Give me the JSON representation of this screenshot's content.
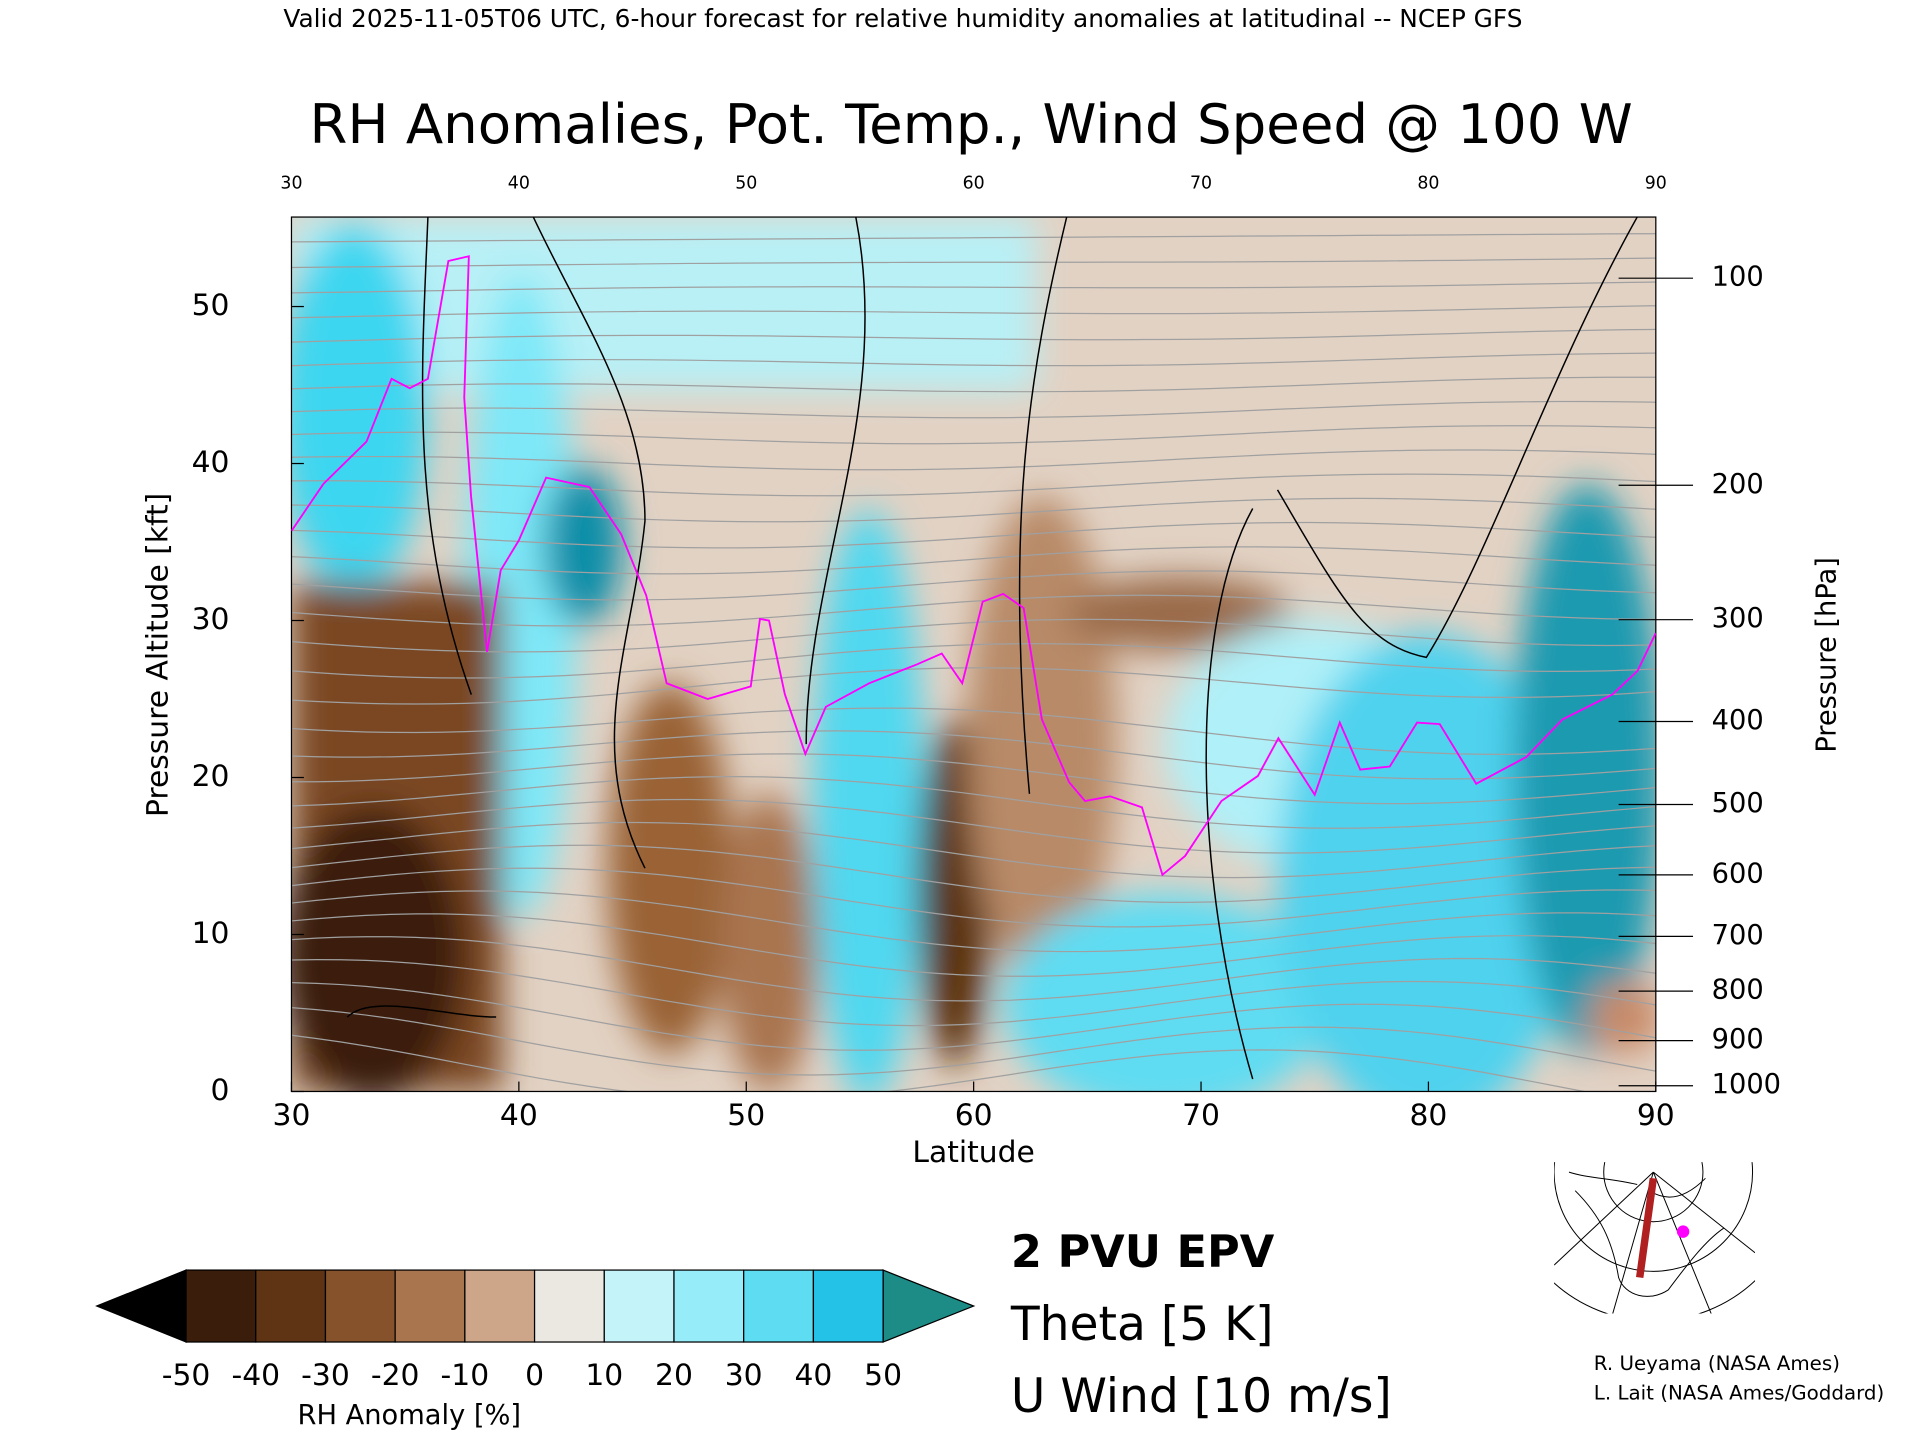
{
  "header": "Valid 2025-11-05T06 UTC, 6-hour forecast for relative humidity anomalies at latitudinal -- NCEP GFS",
  "chart_data": {
    "type": "contour-section",
    "title": "RH Anomalies, Pot. Temp., Wind Speed @ 100 W",
    "x_label": "Latitude",
    "y_label": "Pressure Altitude [kft]",
    "y2_label": "Pressure [hPa]",
    "xlim": [
      30,
      90
    ],
    "xticks": [
      30,
      40,
      50,
      60,
      70,
      80,
      90
    ],
    "ylim": [
      0,
      55.7
    ],
    "yticks": [
      0,
      10,
      20,
      30,
      40,
      50
    ],
    "y2scale": "standard-atmosphere",
    "y2ticks": [
      100,
      200,
      300,
      400,
      500,
      600,
      700,
      800,
      900,
      1000
    ],
    "series": [
      {
        "name": "2 PVU EPV",
        "color": "#ff00ff",
        "x": [
          30.0,
          31.4,
          33.3,
          34.4,
          35.2,
          36.0,
          36.9,
          37.8,
          37.6,
          37.9,
          38.6,
          39.2,
          40.0,
          41.2,
          43.1,
          44.5,
          45.6,
          46.5,
          48.3,
          50.2,
          50.6,
          51.0,
          51.7,
          52.6,
          53.5,
          55.4,
          57.5,
          58.6,
          59.5,
          60.4,
          61.3,
          62.2,
          63.0,
          64.2,
          64.9,
          66.0,
          67.4,
          68.3,
          69.3,
          70.9,
          72.5,
          73.4,
          75.0,
          76.1,
          77.0,
          78.3,
          79.5,
          80.5,
          82.1,
          84.3,
          85.9,
          88.1,
          89.2,
          90.0
        ],
        "values": [
          35.7,
          38.7,
          41.4,
          45.4,
          44.8,
          45.4,
          52.9,
          53.2,
          44.2,
          37.9,
          28.0,
          33.2,
          35.1,
          39.1,
          38.5,
          35.5,
          31.6,
          26.0,
          25.0,
          25.8,
          30.1,
          30.0,
          25.3,
          21.5,
          24.5,
          26.0,
          27.2,
          27.9,
          26.0,
          31.2,
          31.7,
          30.8,
          23.7,
          19.7,
          18.5,
          18.8,
          18.1,
          13.8,
          15.0,
          18.5,
          20.1,
          22.5,
          18.9,
          23.5,
          20.5,
          20.7,
          23.5,
          23.4,
          19.6,
          21.3,
          23.7,
          25.3,
          26.8,
          29.2
        ]
      }
    ],
    "contour_legend": [
      {
        "name": "Theta [5 K]",
        "color": "#a0a0a0"
      },
      {
        "name": "U Wind [10 m/s]",
        "color": "#000000"
      }
    ],
    "colorbar": {
      "label": "RH Anomaly [%]",
      "levels": [
        -50,
        -40,
        -30,
        -20,
        -10,
        0,
        10,
        20,
        30,
        40,
        50
      ],
      "colors": [
        "#3a1d0a",
        "#5e3414",
        "#85522c",
        "#a9754f",
        "#cda68a",
        "#ebe8e2",
        "#c4f4fa",
        "#96ecf8",
        "#5edcf2",
        "#24c2e6",
        "#0b8fb0"
      ],
      "under_color": "#000000",
      "over_color": "#1e8c86"
    }
  },
  "credits": [
    "R. Ueyama (NASA Ames)",
    "L. Lait (NASA Ames/Goddard)"
  ]
}
